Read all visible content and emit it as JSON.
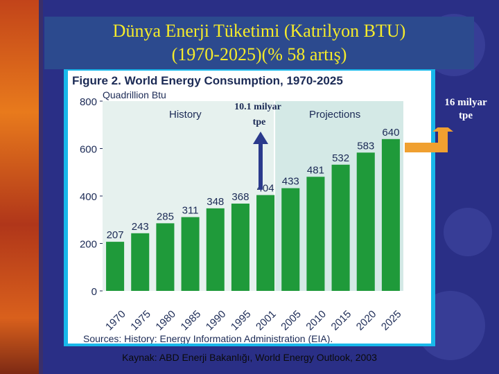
{
  "slide": {
    "title_line1": "Dünya Enerji Tüketimi (Katrilyon BTU)",
    "title_line2": "(1970-2025)(% 58 artış)",
    "right_note_line1": "16 milyar",
    "right_note_line2": "tpe",
    "arrow_note_line1": "10.1 milyar",
    "arrow_note_line2": "tpe",
    "source": "Kaynak: ABD Enerji Bakanlığı, World Energy Outlook, 2003"
  },
  "chart_data": {
    "type": "bar",
    "title": "Figure 2.  World Energy Consumption, 1970-2025",
    "ylabel": "Quadrillion Btu",
    "categories": [
      "1970",
      "1975",
      "1980",
      "1985",
      "1990",
      "1995",
      "2001",
      "2005",
      "2010",
      "2015",
      "2020",
      "2025"
    ],
    "values": [
      207,
      243,
      285,
      311,
      348,
      368,
      404,
      433,
      481,
      532,
      583,
      640
    ],
    "ylim": [
      0,
      800
    ],
    "yticks": [
      0,
      200,
      400,
      600,
      800
    ],
    "history_label": "History",
    "projections_label": "Projections",
    "sources": "Sources: History: Energy Information Administration (EIA).",
    "colors": {
      "bar": "#1f9a3a",
      "plot_bg": "#e6f1ee",
      "projection_bg": "#d4e9e6",
      "title": "#1b2a55"
    }
  }
}
